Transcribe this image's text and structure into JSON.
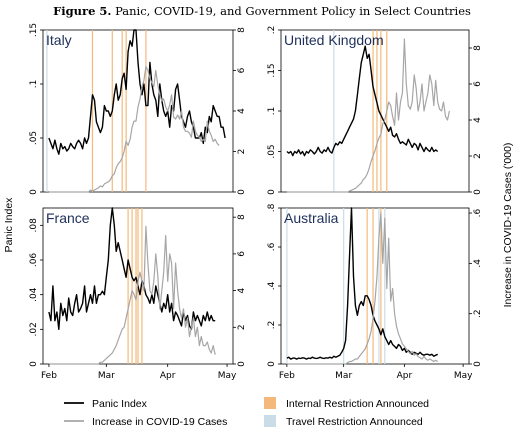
{
  "figure": {
    "label": "Figure 5.",
    "title": "Panic, COVID-19, and Government Policy in Select Countries"
  },
  "axes": {
    "left_label": "Panic Index",
    "right_label": "Increase in COVID-19 Cases ('000)",
    "x_ticks": [
      "Feb",
      "Mar",
      "Apr",
      "May"
    ]
  },
  "legend": {
    "panic": "Panic Index",
    "cases": "Increase in COVID-19 Cases",
    "internal": "Internal Restriction Announced",
    "travel": "Travel Restriction Announced"
  },
  "colors": {
    "panic": "#000000",
    "cases": "#a6a6a6",
    "internal": "#f4b97a",
    "travel": "#c9dce8",
    "title": "#1e2f5a"
  },
  "chart_data": [
    {
      "type": "line",
      "title": "Italy",
      "x_start": "2020-02-01",
      "ylim_left": [
        0,
        0.15
      ],
      "yticks_left": [
        0,
        0.05,
        0.1,
        0.15
      ],
      "ylim_right": [
        0,
        8
      ],
      "yticks_right": [
        0,
        2,
        4,
        6,
        8
      ],
      "series": [
        {
          "name": "Panic Index",
          "values": [
            0.05,
            0.045,
            0.04,
            0.048,
            0.04,
            0.035,
            0.045,
            0.04,
            0.042,
            0.038,
            0.04,
            0.045,
            0.042,
            0.04,
            0.045,
            0.048,
            0.045,
            0.04,
            0.05,
            0.045,
            0.05,
            0.07,
            0.09,
            0.085,
            0.065,
            0.06,
            0.055,
            0.06,
            0.08,
            0.075,
            0.075,
            0.07,
            0.075,
            0.09,
            0.1,
            0.085,
            0.09,
            0.105,
            0.11,
            0.095,
            0.13,
            0.14,
            0.135,
            0.15,
            0.15,
            0.12,
            0.1,
            0.09,
            0.1,
            0.08,
            0.08,
            0.12,
            0.1,
            0.09,
            0.085,
            0.07,
            0.1,
            0.085,
            0.075,
            0.07,
            0.075,
            0.06,
            0.08,
            0.075,
            0.095,
            0.1,
            0.085,
            0.07,
            0.065,
            0.06,
            0.07,
            0.075,
            0.065,
            0.06,
            0.05,
            0.05,
            0.05,
            0.055,
            0.045,
            0.06,
            0.055,
            0.07,
            0.065,
            0.08,
            0.075,
            0.07,
            0.07,
            0.06,
            0.06,
            0.05
          ]
        },
        {
          "name": "Increase in COVID-19 Cases",
          "values": [
            0,
            0,
            0,
            0,
            0,
            0,
            0,
            0,
            0,
            0,
            0,
            0,
            0,
            0,
            0,
            0,
            0,
            0,
            0,
            0,
            0,
            0.1,
            0.05,
            0.1,
            0.15,
            0.2,
            0.3,
            0.25,
            0.4,
            0.45,
            0.5,
            0.6,
            0.8,
            0.9,
            1.2,
            1.4,
            1.5,
            1.7,
            2.0,
            2.5,
            2.3,
            2.6,
            3.2,
            3.5,
            3.5,
            4.2,
            4.6,
            5.2,
            5.5,
            6.2,
            6.0,
            5.6,
            5.4,
            5.2,
            6.0,
            5.3,
            4.8,
            4.5,
            4.6,
            4.2,
            4.0,
            4.3,
            4.8,
            3.7,
            3.6,
            3.8,
            3.6,
            4.0,
            3.2,
            3.0,
            3.0,
            2.9,
            2.7,
            3.5,
            3.0,
            2.8,
            2.7,
            2.5,
            2.6,
            2.5,
            3.5,
            3.0,
            2.8,
            2.5,
            2.6,
            2.4,
            2.3
          ]
        }
      ],
      "internal_restrictions": [
        "2020-02-23",
        "2020-03-04",
        "2020-03-09",
        "2020-03-11",
        "2020-03-21"
      ],
      "travel_restrictions": [
        "2020-01-31"
      ]
    },
    {
      "type": "line",
      "title": "United Kingdom",
      "x_start": "2020-02-01",
      "ylim_left": [
        0,
        0.2
      ],
      "yticks_left": [
        0,
        0.05,
        0.1,
        0.15,
        0.2
      ],
      "ylim_right": [
        0,
        9
      ],
      "yticks_right": [
        0,
        2,
        4,
        6,
        8
      ],
      "series": [
        {
          "name": "Panic Index",
          "values": [
            0.05,
            0.048,
            0.05,
            0.045,
            0.05,
            0.048,
            0.052,
            0.047,
            0.05,
            0.045,
            0.05,
            0.048,
            0.052,
            0.05,
            0.047,
            0.05,
            0.055,
            0.05,
            0.048,
            0.052,
            0.05,
            0.055,
            0.05,
            0.048,
            0.055,
            0.06,
            0.058,
            0.062,
            0.06,
            0.065,
            0.07,
            0.075,
            0.08,
            0.085,
            0.09,
            0.1,
            0.12,
            0.14,
            0.16,
            0.17,
            0.18,
            0.165,
            0.17,
            0.15,
            0.13,
            0.12,
            0.11,
            0.1,
            0.095,
            0.09,
            0.085,
            0.08,
            0.075,
            0.08,
            0.07,
            0.068,
            0.072,
            0.065,
            0.06,
            0.062,
            0.06,
            0.058,
            0.065,
            0.06,
            0.055,
            0.06,
            0.058,
            0.052,
            0.06,
            0.055,
            0.05,
            0.055,
            0.052,
            0.05,
            0.055,
            0.05,
            0.052,
            0.05
          ]
        },
        {
          "name": "Increase in COVID-19 Cases",
          "values": [
            0,
            0,
            0,
            0,
            0,
            0,
            0,
            0,
            0,
            0,
            0,
            0,
            0,
            0,
            0,
            0,
            0,
            0,
            0,
            0,
            0,
            0,
            0,
            0,
            0,
            0,
            0,
            0,
            0,
            0,
            0,
            0,
            0.05,
            0.1,
            0.15,
            0.2,
            0.3,
            0.4,
            0.5,
            0.7,
            0.8,
            1.0,
            1.3,
            1.7,
            2.0,
            2.3,
            2.7,
            3.0,
            3.2,
            3.8,
            4.0,
            4.5,
            5.0,
            4.8,
            4.2,
            3.7,
            5.5,
            4.0,
            5.0,
            5.5,
            8.5,
            6.0,
            4.8,
            4.6,
            5.0,
            6.5,
            5.8,
            4.5,
            5.0,
            6.0,
            4.5,
            5.0,
            5.5,
            6.5,
            6.0,
            4.8,
            6.2,
            5.0,
            4.6,
            4.5,
            5.0,
            4.2,
            4.0,
            4.5
          ]
        }
      ],
      "internal_restrictions": [
        "2020-03-16",
        "2020-03-18",
        "2020-03-20",
        "2020-03-23"
      ],
      "travel_restrictions": [
        "2020-02-25"
      ]
    },
    {
      "type": "line",
      "title": "France",
      "x_start": "2020-02-01",
      "ylim_left": [
        0,
        0.09
      ],
      "yticks_left": [
        0,
        0.02,
        0.04,
        0.06,
        0.08
      ],
      "ylim_right": [
        0,
        8.5
      ],
      "yticks_right": [
        0,
        2,
        4,
        6,
        8
      ],
      "series": [
        {
          "name": "Panic Index",
          "values": [
            0.03,
            0.025,
            0.045,
            0.025,
            0.03,
            0.02,
            0.035,
            0.028,
            0.032,
            0.025,
            0.038,
            0.03,
            0.028,
            0.035,
            0.04,
            0.03,
            0.032,
            0.035,
            0.045,
            0.03,
            0.035,
            0.04,
            0.035,
            0.045,
            0.035,
            0.04,
            0.04,
            0.042,
            0.04,
            0.05,
            0.06,
            0.08,
            0.09,
            0.08,
            0.065,
            0.07,
            0.065,
            0.06,
            0.055,
            0.05,
            0.06,
            0.055,
            0.05,
            0.048,
            0.05,
            0.045,
            0.04,
            0.048,
            0.045,
            0.04,
            0.038,
            0.035,
            0.04,
            0.035,
            0.045,
            0.04,
            0.035,
            0.03,
            0.035,
            0.032,
            0.04,
            0.03,
            0.035,
            0.025,
            0.03,
            0.028,
            0.025,
            0.022,
            0.03,
            0.025,
            0.028,
            0.022,
            0.02,
            0.03,
            0.025,
            0.028,
            0.025,
            0.022,
            0.028,
            0.025,
            0.03,
            0.025,
            0.028,
            0.025,
            0.025
          ]
        },
        {
          "name": "Increase in COVID-19 Cases",
          "values": [
            0,
            0,
            0,
            0,
            0,
            0,
            0,
            0,
            0,
            0,
            0,
            0,
            0,
            0,
            0,
            0,
            0,
            0,
            0,
            0,
            0,
            0,
            0,
            0,
            0,
            0,
            0.1,
            0.1,
            0.2,
            0.3,
            0.4,
            0.5,
            0.6,
            0.8,
            1.0,
            1.3,
            1.6,
            1.9,
            2.0,
            2.5,
            3.0,
            3.5,
            4.0,
            3.8,
            3.5,
            4.5,
            5.0,
            4.5,
            4.0,
            7.5,
            5.5,
            4.0,
            3.8,
            4.5,
            6.0,
            4.8,
            3.0,
            4.0,
            5.0,
            7.0,
            4.5,
            6.0,
            5.5,
            3.0,
            5.5,
            4.0,
            3.0,
            2.5,
            3.0,
            2.0,
            2.5,
            1.5,
            2.0,
            2.5,
            1.5,
            2.0,
            1.0,
            1.5,
            1.0,
            1.0,
            1.2,
            0.8,
            0.6,
            1.0,
            0.5
          ]
        }
      ],
      "internal_restrictions": [
        "2020-03-12",
        "2020-03-14",
        "2020-03-16",
        "2020-03-17",
        "2020-03-19"
      ],
      "travel_restrictions": []
    },
    {
      "type": "line",
      "title": "Australia",
      "x_start": "2020-02-01",
      "ylim_left": [
        0,
        0.8
      ],
      "yticks_left": [
        0,
        0.2,
        0.4,
        0.6,
        0.8
      ],
      "ylim_right": [
        0,
        0.62
      ],
      "yticks_right": [
        0,
        0.2,
        0.4,
        0.6
      ],
      "series": [
        {
          "name": "Panic Index",
          "values": [
            0.03,
            0.035,
            0.025,
            0.03,
            0.03,
            0.025,
            0.03,
            0.028,
            0.032,
            0.03,
            0.025,
            0.03,
            0.028,
            0.035,
            0.03,
            0.028,
            0.03,
            0.035,
            0.03,
            0.028,
            0.032,
            0.03,
            0.035,
            0.03,
            0.04,
            0.035,
            0.04,
            0.045,
            0.06,
            0.08,
            0.12,
            0.3,
            0.55,
            0.8,
            0.45,
            0.3,
            0.25,
            0.3,
            0.32,
            0.3,
            0.35,
            0.35,
            0.33,
            0.3,
            0.25,
            0.22,
            0.2,
            0.18,
            0.15,
            0.18,
            0.14,
            0.12,
            0.1,
            0.12,
            0.1,
            0.09,
            0.08,
            0.1,
            0.09,
            0.07,
            0.08,
            0.06,
            0.07,
            0.06,
            0.05,
            0.06,
            0.055,
            0.05,
            0.06,
            0.05,
            0.045,
            0.05,
            0.05,
            0.045,
            0.05,
            0.04,
            0.045,
            0.05
          ]
        },
        {
          "name": "Increase in COVID-19 Cases",
          "values": [
            0,
            0,
            0,
            0,
            0,
            0,
            0,
            0,
            0,
            0,
            0,
            0,
            0,
            0,
            0,
            0,
            0,
            0,
            0,
            0,
            0,
            0,
            0,
            0,
            0,
            0,
            0,
            0,
            0,
            0,
            0,
            0.005,
            0.01,
            0.01,
            0.015,
            0.02,
            0.02,
            0.03,
            0.04,
            0.05,
            0.06,
            0.08,
            0.1,
            0.13,
            0.18,
            0.25,
            0.35,
            0.5,
            0.6,
            0.4,
            0.58,
            0.3,
            0.5,
            0.25,
            0.3,
            0.2,
            0.15,
            0.12,
            0.1,
            0.08,
            0.07,
            0.06,
            0.05,
            0.04,
            0.05,
            0.035,
            0.04,
            0.03,
            0.025,
            0.02,
            0.03,
            0.02,
            0.015,
            0.02,
            0.015,
            0.01,
            0.015,
            0.01
          ]
        }
      ],
      "internal_restrictions": [
        "2020-03-13",
        "2020-03-16",
        "2020-03-20"
      ],
      "travel_restrictions": [
        "2020-02-01",
        "2020-03-01",
        "2020-03-19",
        "2020-03-22"
      ]
    }
  ]
}
